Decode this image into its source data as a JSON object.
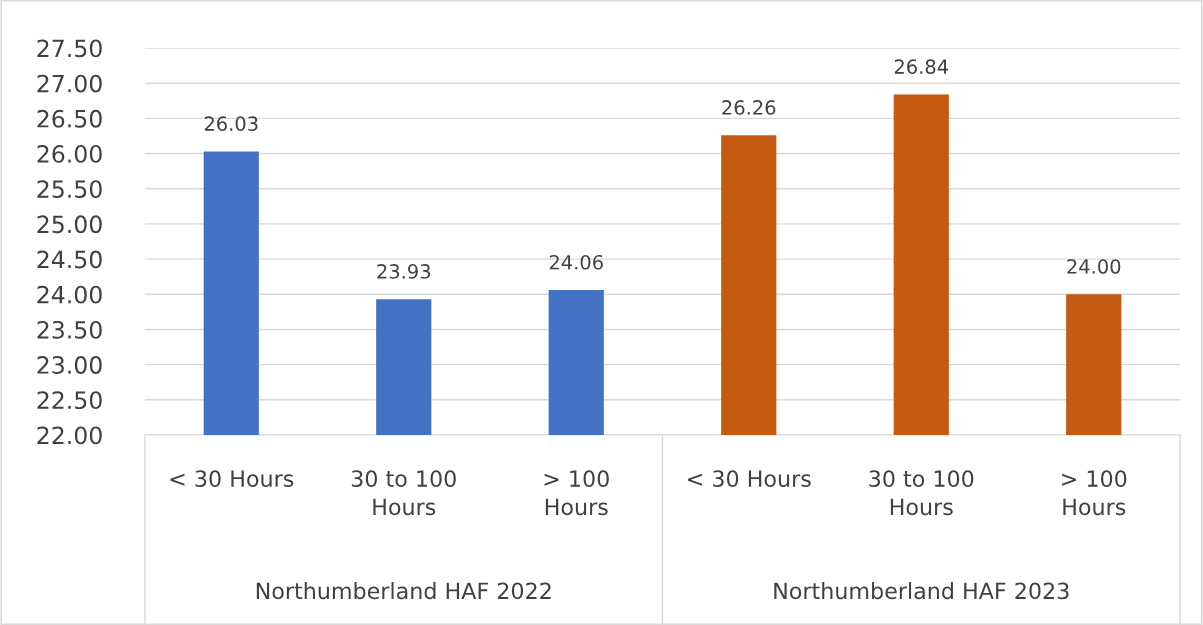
{
  "chart_data": {
    "type": "bar",
    "categories": [
      "< 30 Hours",
      "30 to 100\nHours",
      "> 100\nHours",
      "< 30 Hours",
      "30 to 100\nHours",
      "> 100\nHours"
    ],
    "values": [
      26.03,
      23.93,
      24.06,
      26.26,
      26.84,
      24.0
    ],
    "value_labels": [
      "26.03",
      "23.93",
      "24.06",
      "26.26",
      "26.84",
      "24.00"
    ],
    "colors": [
      "#4472c4",
      "#4472c4",
      "#4472c4",
      "#c55a11",
      "#c55a11",
      "#c55a11"
    ],
    "ylim": [
      22,
      27.5
    ],
    "yticks": [
      {
        "value": 22,
        "label": "22.00"
      },
      {
        "value": 22.5,
        "label": "22.50"
      },
      {
        "value": 23,
        "label": "23.00"
      },
      {
        "value": 23.5,
        "label": "23.50"
      },
      {
        "value": 24,
        "label": "24.00"
      },
      {
        "value": 24.5,
        "label": "24.50"
      },
      {
        "value": 25,
        "label": "25.00"
      },
      {
        "value": 25.5,
        "label": "25.50"
      },
      {
        "value": 26,
        "label": "26.00"
      },
      {
        "value": 26.5,
        "label": "26.50"
      },
      {
        "value": 27,
        "label": "27.00"
      },
      {
        "value": 27.5,
        "label": "27.50"
      }
    ],
    "grid": "y",
    "annotations": [
      "Northumberland HAF 2022",
      "Northumberland HAF 2023"
    ]
  }
}
